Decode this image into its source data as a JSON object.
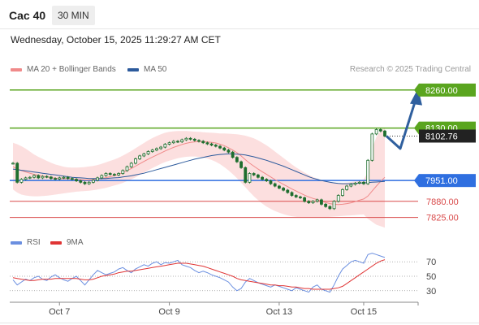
{
  "header": {
    "instrument": "Cac 40",
    "timeframe": "30 MIN",
    "datetime": "Wednesday, October 15, 2025 11:29:27 AM CET"
  },
  "legend": {
    "ma20_label": "MA 20 + Bollinger Bands",
    "ma50_label": "MA 50",
    "copyright": "Research © 2025 Trading Central"
  },
  "colors": {
    "ma20": "#f08a8a",
    "ma50": "#2c5a9c",
    "band": "#fbd4d4",
    "candle": "#1e6e2e",
    "resistance": "#5aa51f",
    "pivot": "#2f6fe0",
    "support": "#d94a4a",
    "arrow": "#2f5f9e",
    "rsi": "#6b8fe0",
    "rsi_ma": "#e03535",
    "current_price_bg": "#222222"
  },
  "chart_data": [
    {
      "type": "candlestick",
      "ylim": [
        7785,
        8290
      ],
      "x_ticks": [
        "Oct 7",
        "Oct 9",
        "Oct 13",
        "Oct 15"
      ],
      "levels": [
        {
          "label": "8260.00",
          "value": 8260.0,
          "role": "resistance"
        },
        {
          "label": "8130.00",
          "value": 8130.0,
          "role": "resistance"
        },
        {
          "label": "7951.00",
          "value": 7951.0,
          "role": "pivot"
        },
        {
          "label": "7880.00",
          "value": 7880.0,
          "role": "support"
        },
        {
          "label": "7825.00",
          "value": 7825.0,
          "role": "support"
        }
      ],
      "current_price": "8102.76",
      "close": [
        8010,
        7945,
        7955,
        7960,
        7962,
        7968,
        7960,
        7965,
        7963,
        7958,
        7956,
        7960,
        7962,
        7958,
        7955,
        7950,
        7945,
        7940,
        7945,
        7952,
        7960,
        7968,
        7975,
        7972,
        7970,
        7975,
        7985,
        7998,
        8010,
        8025,
        8035,
        8042,
        8050,
        8055,
        8060,
        8065,
        8075,
        8080,
        8085,
        8083,
        8090,
        8095,
        8092,
        8088,
        8085,
        8080,
        8076,
        8072,
        8068,
        8062,
        8055,
        8048,
        8030,
        8015,
        7995,
        7945,
        7975,
        7970,
        7962,
        7955,
        7950,
        7940,
        7932,
        7925,
        7918,
        7910,
        7900,
        7895,
        7892,
        7880,
        7875,
        7880,
        7885,
        7870,
        7862,
        7855,
        7880,
        7900,
        7920,
        7932,
        7938,
        7942,
        7945,
        7940,
        8020,
        8110,
        8125,
        8120,
        8102.76
      ],
      "ma20": [
        7998,
        7990,
        7985,
        7980,
        7976,
        7972,
        7969,
        7966,
        7963,
        7961,
        7959,
        7958,
        7957,
        7957,
        7956,
        7955,
        7954,
        7953,
        7953,
        7954,
        7956,
        7958,
        7961,
        7964,
        7968,
        7972,
        7978,
        7985,
        7992,
        8000,
        8008,
        8016,
        8024,
        8031,
        8038,
        8045,
        8052,
        8058,
        8064,
        8069,
        8074,
        8078,
        8081,
        8083,
        8084,
        8084,
        8083,
        8081,
        8079,
        8075,
        8070,
        8063,
        8055,
        8046,
        8035,
        8022,
        8010,
        8000,
        7990,
        7981,
        7972,
        7963,
        7954,
        7946,
        7938,
        7930,
        7922,
        7915,
        7908,
        7901,
        7895,
        7890,
        7886,
        7880,
        7876,
        7872,
        7870,
        7869,
        7870,
        7872,
        7875,
        7879,
        7884,
        7888,
        7898,
        7915,
        7932,
        7948,
        7962
      ],
      "bb_upper": [
        8080,
        8075,
        8068,
        8060,
        8050,
        8040,
        8032,
        8025,
        8018,
        8012,
        8006,
        8002,
        7998,
        7996,
        7995,
        7995,
        7996,
        7997,
        7999,
        8001,
        8004,
        8008,
        8013,
        8018,
        8023,
        8029,
        8036,
        8044,
        8052,
        8061,
        8070,
        8079,
        8088,
        8096,
        8103,
        8109,
        8114,
        8117,
        8119,
        8120,
        8120,
        8120,
        8119,
        8118,
        8117,
        8116,
        8115,
        8114,
        8113,
        8112,
        8112,
        8111,
        8110,
        8109,
        8107,
        8104,
        8100,
        8095,
        8088,
        8080,
        8071,
        8061,
        8050,
        8039,
        8028,
        8017,
        8006,
        7996,
        7987,
        7978,
        7970,
        7963,
        7958,
        7953,
        7949,
        7946,
        7944,
        7943,
        7943,
        7944,
        7946,
        7948,
        7951,
        7955,
        7980,
        8060,
        8100,
        8120,
        8130
      ],
      "bb_lower": [
        7920,
        7910,
        7903,
        7900,
        7898,
        7897,
        7897,
        7898,
        7899,
        7901,
        7903,
        7905,
        7907,
        7909,
        7911,
        7913,
        7914,
        7915,
        7916,
        7918,
        7920,
        7923,
        7926,
        7930,
        7934,
        7938,
        7943,
        7949,
        7955,
        7962,
        7970,
        7978,
        7986,
        7994,
        8001,
        8008,
        8014,
        8019,
        8023,
        8027,
        8030,
        8032,
        8033,
        8033,
        8032,
        8030,
        8026,
        8021,
        8015,
        8007,
        7997,
        7986,
        7973,
        7959,
        7944,
        7928,
        7912,
        7897,
        7884,
        7872,
        7862,
        7854,
        7847,
        7841,
        7836,
        7832,
        7829,
        7827,
        7826,
        7826,
        7826,
        7826,
        7826,
        7826,
        7826,
        7827,
        7828,
        7829,
        7830,
        7831,
        7832,
        7833,
        7834,
        7835,
        7820,
        7810,
        7800,
        7795,
        7790
      ],
      "ma50": [
        7990,
        7988,
        7986,
        7984,
        7982,
        7980,
        7978,
        7976,
        7974,
        7972,
        7970,
        7968,
        7966,
        7964,
        7962,
        7961,
        7960,
        7959,
        7958,
        7958,
        7958,
        7958,
        7958,
        7959,
        7960,
        7961,
        7963,
        7965,
        7967,
        7970,
        7973,
        7976,
        7980,
        7984,
        7988,
        7992,
        7996,
        8000,
        8004,
        8008,
        8012,
        8016,
        8020,
        8024,
        8027,
        8030,
        8033,
        8036,
        8038,
        8040,
        8041,
        8042,
        8042,
        8041,
        8040,
        8038,
        8035,
        8032,
        8028,
        8024,
        8020,
        8015,
        8010,
        8005,
        8000,
        7994,
        7988,
        7982,
        7976,
        7970,
        7964,
        7959,
        7955,
        7951,
        7948,
        7945,
        7943,
        7941,
        7940,
        7940,
        7940,
        7941,
        7942,
        7943,
        7944,
        7945,
        7946,
        7947,
        7948
      ],
      "forecast": [
        8102.76,
        8060,
        8255
      ]
    },
    {
      "type": "line",
      "name": "RSI",
      "ylim": [
        14,
        86
      ],
      "y_ticks": [
        "70",
        "50",
        "30"
      ],
      "y_tick_values": [
        70,
        50,
        30
      ],
      "legend": [
        "RSI",
        "9MA"
      ],
      "rsi": [
        45,
        38,
        42,
        46,
        44,
        48,
        50,
        46,
        44,
        49,
        52,
        48,
        45,
        43,
        47,
        50,
        44,
        38,
        45,
        52,
        58,
        55,
        52,
        54,
        56,
        60,
        62,
        58,
        55,
        60,
        63,
        66,
        64,
        68,
        70,
        66,
        69,
        68,
        70,
        72,
        66,
        64,
        62,
        58,
        55,
        57,
        55,
        52,
        50,
        48,
        45,
        42,
        35,
        30,
        33,
        42,
        47,
        44,
        41,
        39,
        37,
        35,
        38,
        36,
        34,
        32,
        30,
        34,
        32,
        30,
        28,
        35,
        38,
        32,
        30,
        28,
        38,
        50,
        60,
        65,
        70,
        72,
        70,
        68,
        80,
        82,
        80,
        78,
        76
      ],
      "rsi_ma": [
        48,
        47,
        46,
        45,
        44,
        44,
        45,
        46,
        46,
        46,
        47,
        47,
        47,
        47,
        47,
        47,
        46,
        45,
        45,
        46,
        48,
        50,
        51,
        52,
        53,
        55,
        56,
        57,
        57,
        58,
        59,
        60,
        61,
        62,
        63,
        64,
        65,
        66,
        67,
        68,
        68,
        68,
        67,
        66,
        65,
        64,
        62,
        60,
        58,
        56,
        54,
        52,
        50,
        47,
        45,
        44,
        43,
        42,
        41,
        40,
        39,
        38,
        38,
        37,
        37,
        36,
        35,
        35,
        34,
        33,
        33,
        32,
        32,
        32,
        32,
        32,
        33,
        34,
        36,
        40,
        44,
        48,
        52,
        56,
        60,
        64,
        68,
        71,
        73
      ]
    }
  ]
}
